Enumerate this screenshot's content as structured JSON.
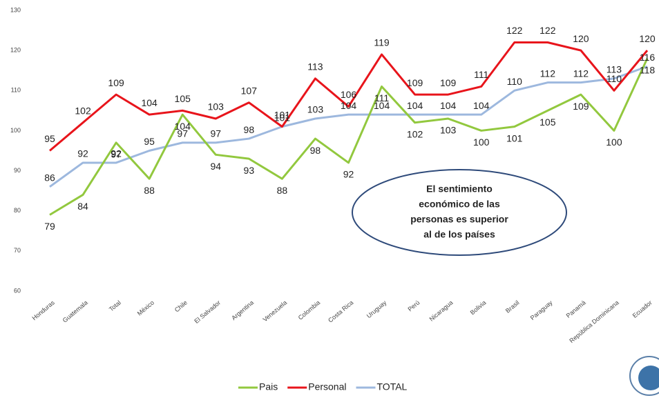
{
  "chart_data": {
    "type": "line",
    "categories": [
      "Honduras",
      "Guatemala",
      "Total",
      "México",
      "Chile",
      "El Salvador",
      "Argentina",
      "Venezuela",
      "Colombia",
      "Costa Rica",
      "Uruguay",
      "Perú",
      "Nicaragua",
      "Bolivia",
      "Brasil",
      "Paraguay",
      "Panamá",
      "República Dominicana",
      "Ecuador"
    ],
    "series": [
      {
        "name": "Pais",
        "color": "#92c83e",
        "values": [
          79,
          84,
          97,
          88,
          104,
          94,
          93,
          88,
          98,
          92,
          111,
          102,
          103,
          100,
          101,
          105,
          109,
          100,
          118
        ]
      },
      {
        "name": "Personal",
        "color": "#e8141b",
        "values": [
          95,
          102,
          109,
          104,
          105,
          103,
          107,
          101,
          113,
          106,
          119,
          109,
          109,
          111,
          122,
          122,
          120,
          110,
          120
        ]
      },
      {
        "name": "TOTAL",
        "color": "#9db8de",
        "values": [
          86,
          92,
          92,
          95,
          97,
          97,
          98,
          101,
          103,
          104,
          104,
          104,
          104,
          104,
          110,
          112,
          112,
          113,
          116
        ]
      }
    ],
    "ylim": [
      60,
      130
    ],
    "yticks": [
      60,
      70,
      80,
      90,
      100,
      110,
      120,
      130
    ],
    "grid": false,
    "annotations": [
      "El sentimiento",
      "económico de las",
      "personas es superior",
      "al de los países"
    ]
  }
}
